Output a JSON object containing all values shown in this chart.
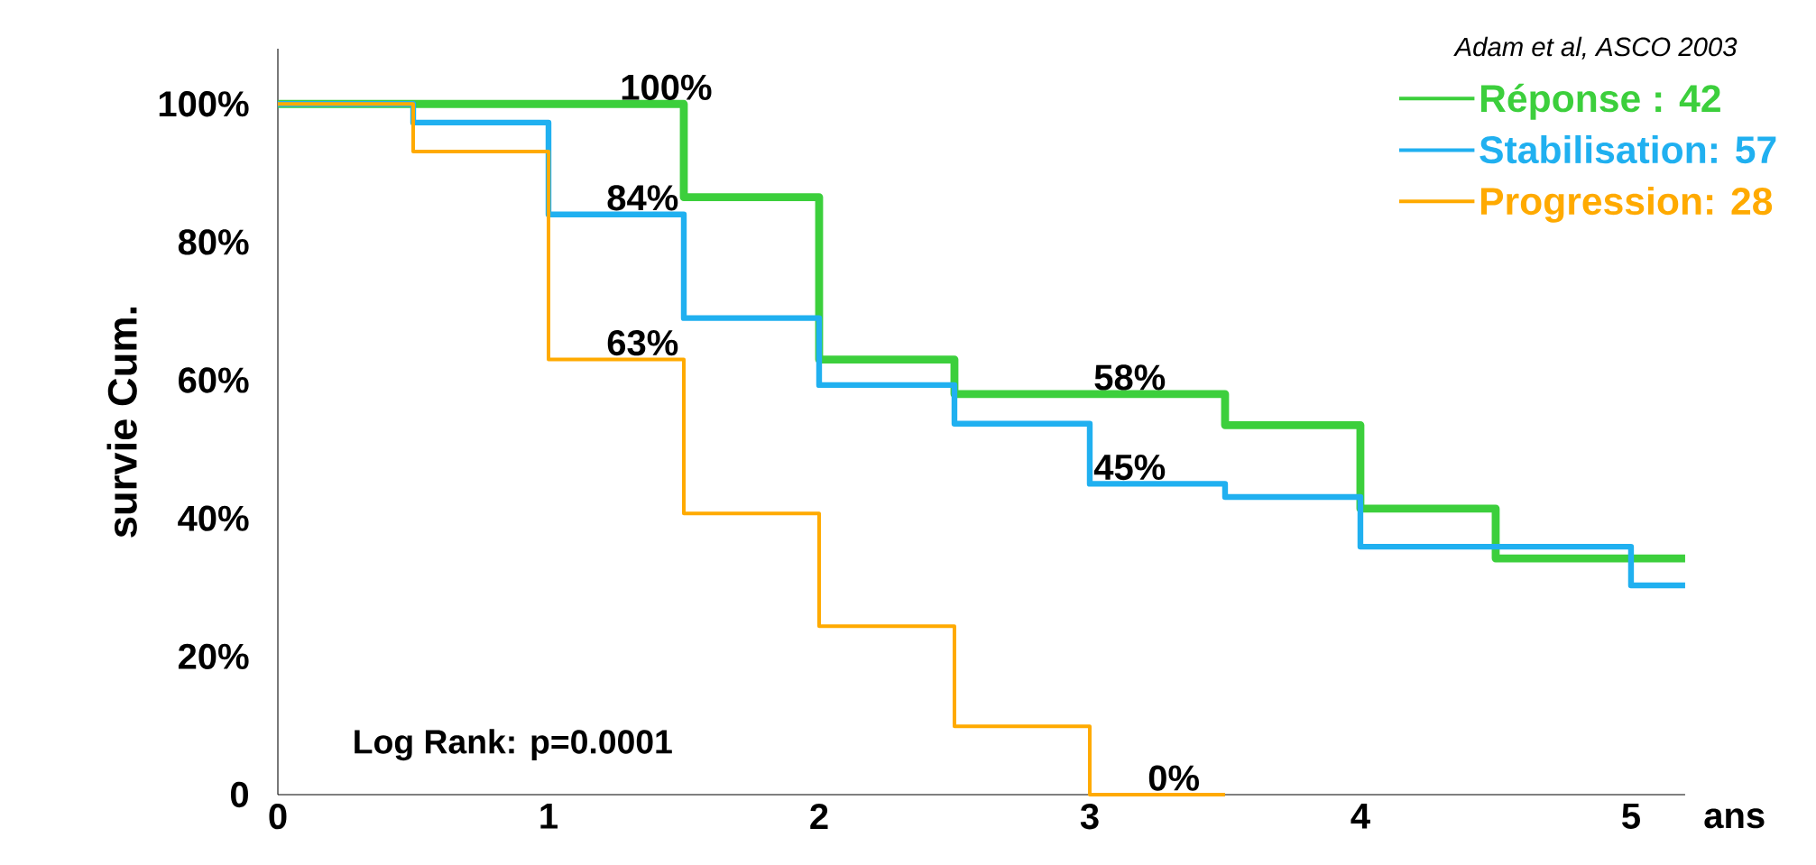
{
  "chart_data": {
    "type": "step",
    "ylabel": "survie Cum.",
    "xlabel": "ans",
    "xlim": [
      0,
      5.2
    ],
    "ylim": [
      0,
      108
    ],
    "xticks": [
      0,
      1,
      2,
      3,
      4,
      5
    ],
    "yticks": [
      {
        "value": 0,
        "label": "0"
      },
      {
        "value": 20,
        "label": "20%"
      },
      {
        "value": 40,
        "label": "40%"
      },
      {
        "value": 60,
        "label": "60%"
      },
      {
        "value": 80,
        "label": "80%"
      },
      {
        "value": 100,
        "label": "100%"
      }
    ],
    "series": [
      {
        "name": "Réponse : 42",
        "color": "#3ccf3c",
        "x": [
          0,
          1.5,
          2,
          2.5,
          3.5,
          4,
          4.5,
          5.2
        ],
        "values": [
          100,
          86.5,
          63,
          58,
          53.5,
          41.4,
          34.2,
          34.2
        ]
      },
      {
        "name": "Stabilisation: 57",
        "color": "#20b0f0",
        "x": [
          0,
          0.5,
          1,
          1.5,
          2,
          2.5,
          3,
          3.5,
          4,
          5,
          5.2
        ],
        "values": [
          100,
          97.3,
          84,
          69,
          59.3,
          53.7,
          45,
          43.1,
          35.9,
          30.3,
          30.3
        ]
      },
      {
        "name": "Progression: 28",
        "color": "#ffaa00",
        "x": [
          0,
          0.5,
          1,
          1.5,
          2,
          2.5,
          3,
          3.5
        ],
        "values": [
          100,
          93.1,
          63,
          40.7,
          24.4,
          9.9,
          0,
          0
        ]
      }
    ],
    "annotations": [
      {
        "text": "100%",
        "x": 1.25,
        "y": 100
      },
      {
        "text": "84%",
        "x": 1.2,
        "y": 84
      },
      {
        "text": "63%",
        "x": 1.2,
        "y": 63
      },
      {
        "text": "58%",
        "x": 3,
        "y": 58
      },
      {
        "text": "45%",
        "x": 3,
        "y": 45
      },
      {
        "text": "0%",
        "x": 3.2,
        "y": 0
      },
      "Log Rank: p=0.0001",
      "Adam et al,  ASCO 2003"
    ],
    "legend": "top right",
    "grid": false,
    "line_style": "solid",
    "marker": "none"
  }
}
